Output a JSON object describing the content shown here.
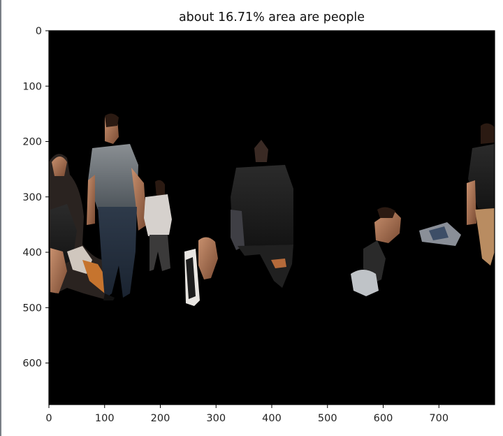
{
  "chart_data": {
    "type": "image",
    "title": "about 16.71% area are people",
    "xlabel": "",
    "ylabel": "",
    "xlim": [
      0,
      800
    ],
    "ylim": [
      675,
      0
    ],
    "xticks": [
      0,
      100,
      200,
      300,
      400,
      500,
      600,
      700
    ],
    "yticks": [
      0,
      100,
      200,
      300,
      400,
      500,
      600
    ],
    "people_area_percent": 16.71,
    "background_color": "#000000",
    "regions": [
      {
        "label": "person-left-seated",
        "x_range": [
          0,
          60
        ],
        "y_range": [
          215,
          450
        ]
      },
      {
        "label": "person-walking-center-left",
        "x_range": [
          70,
          185
        ],
        "y_range": [
          160,
          480
        ]
      },
      {
        "label": "person-small-near",
        "x_range": [
          170,
          230
        ],
        "y_range": [
          255,
          435
        ]
      },
      {
        "label": "person-legs-bottom",
        "x_range": [
          245,
          310
        ],
        "y_range": [
          330,
          490
        ]
      },
      {
        "label": "person-back-center",
        "x_range": [
          325,
          440
        ],
        "y_range": [
          200,
          460
        ]
      },
      {
        "label": "person-crouching-right",
        "x_range": [
          540,
          590
        ],
        "y_range": [
          320,
          430
        ]
      },
      {
        "label": "person-group-right",
        "x_range": [
          670,
          800
        ],
        "y_range": [
          175,
          410
        ]
      }
    ]
  }
}
